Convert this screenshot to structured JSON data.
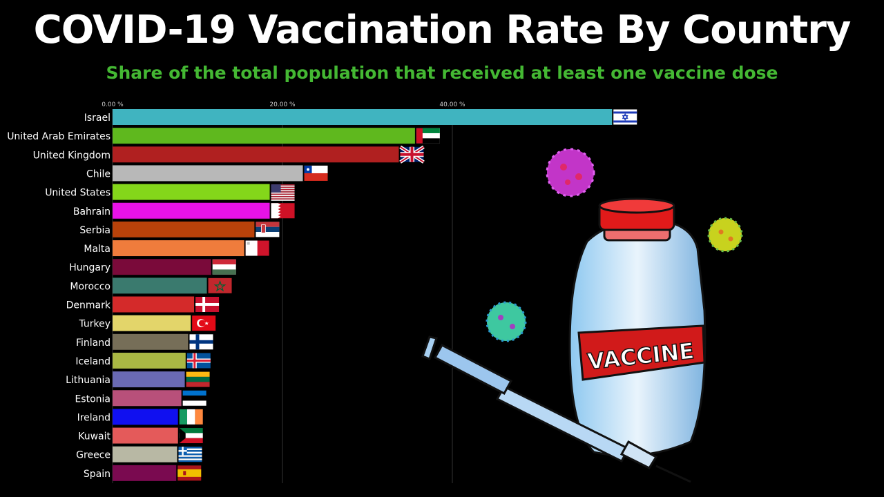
{
  "title": "COVID-19 Vaccination Rate By Country",
  "subtitle": "Share of the total population that received at least one vaccine dose",
  "art": {
    "vaccine_label": "VACCINE"
  },
  "chart_data": {
    "type": "bar",
    "orientation": "horizontal",
    "xlim": [
      0,
      62
    ],
    "ticks": [
      0,
      20,
      40
    ],
    "tick_labels": [
      "0.00 %",
      "20.00 %",
      "40.00 %"
    ],
    "grid": true,
    "categories": [
      "Israel",
      "United Arab Emirates",
      "United Kingdom",
      "Chile",
      "United States",
      "Bahrain",
      "Serbia",
      "Malta",
      "Hungary",
      "Morocco",
      "Denmark",
      "Turkey",
      "Finland",
      "Iceland",
      "Lithuania",
      "Estonia",
      "Ireland",
      "Kuwait",
      "Greece",
      "Spain"
    ],
    "values": [
      58.8,
      35.6,
      33.7,
      22.4,
      18.5,
      18.5,
      16.7,
      15.5,
      11.6,
      11.1,
      9.6,
      9.2,
      8.9,
      8.6,
      8.5,
      8.1,
      7.7,
      7.7,
      7.6,
      7.5
    ],
    "colors": [
      "#40b4c0",
      "#5fb81e",
      "#b02020",
      "#b8b8b8",
      "#84d61a",
      "#e812e8",
      "#b9420a",
      "#ef7c3c",
      "#7a0a3a",
      "#3a7a6e",
      "#d42a2a",
      "#e3d56a",
      "#766e58",
      "#a9b844",
      "#6a6ab4",
      "#b8507a",
      "#1010f0",
      "#e45a5a",
      "#b8b8a4",
      "#7a0a50"
    ],
    "flags": [
      "israel",
      "uae",
      "uk",
      "chile",
      "usa",
      "bahrain",
      "serbia",
      "malta",
      "hungary",
      "morocco",
      "denmark",
      "turkey",
      "finland",
      "iceland",
      "lithuania",
      "estonia",
      "ireland",
      "kuwait",
      "greece",
      "spain"
    ]
  }
}
